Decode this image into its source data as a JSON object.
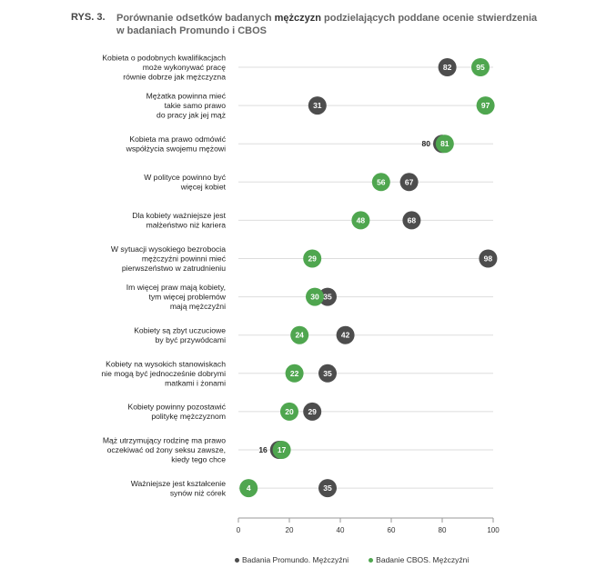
{
  "figure_label": "RYS. 3.",
  "title_parts": [
    "Porównanie odsetków badanych ",
    "mężczyzn",
    " podzielających poddane ocenie stwierdzenia w badaniach Promundo i CBOS"
  ],
  "colors": {
    "promundo": "#4d4d4d",
    "cbos": "#4fa64f",
    "grid": "#dddddd",
    "axis": "#999999"
  },
  "chart_data": {
    "type": "scatter",
    "title": "Porównanie odsetków badanych mężczyzn podzielających poddane ocenie stwierdzenia w badaniach Promundo i CBOS",
    "xlim": [
      0,
      100
    ],
    "xticks": [
      0,
      20,
      40,
      60,
      80,
      100
    ],
    "grid": true,
    "legend_position": "bottom",
    "categories": [
      [
        "Kobieta o podobnych kwalifikacjach",
        "może wykonywać pracę",
        "równie dobrze jak mężczyzna"
      ],
      [
        "Mężatka powinna mieć",
        "takie samo prawo",
        "do pracy jak jej mąż"
      ],
      [
        "Kobieta ma prawo odmówić",
        "współżycia swojemu mężowi"
      ],
      [
        "W polityce powinno być",
        "więcej kobiet"
      ],
      [
        "Dla kobiety ważniejsze jest",
        "małżeństwo niż kariera"
      ],
      [
        "W sytuacji wysokiego bezrobocia",
        "mężczyźni powinni mieć",
        "pierwszeństwo w zatrudnieniu"
      ],
      [
        "Im więcej praw mają kobiety,",
        "tym więcej problemów",
        "mają mężczyźni"
      ],
      [
        "Kobiety są zbyt uczuciowe",
        "by być przywódcami"
      ],
      [
        "Kobiety na wysokich stanowiskach",
        "nie mogą być jednocześnie dobrymi",
        "matkami i żonami"
      ],
      [
        "Kobiety powinny pozostawić",
        "politykę mężczyznom"
      ],
      [
        "Mąż utrzymujący rodzinę ma prawo",
        "oczekiwać od żony seksu zawsze,",
        "kiedy tego chce"
      ],
      [
        "Ważniejsze jest kształcenie",
        "synów niż córek"
      ]
    ],
    "series": [
      {
        "name": "Badania Promundo. Mężczyźni",
        "values": [
          82,
          31,
          80,
          67,
          68,
          98,
          35,
          42,
          35,
          29,
          16,
          35
        ]
      },
      {
        "name": "Badanie CBOS. Mężczyźni",
        "values": [
          95,
          97,
          81,
          56,
          48,
          29,
          30,
          24,
          22,
          20,
          17,
          4
        ]
      }
    ]
  }
}
